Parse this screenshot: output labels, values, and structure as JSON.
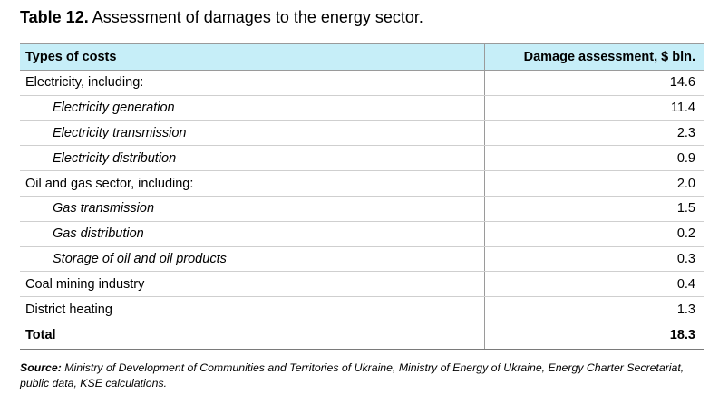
{
  "caption": {
    "label": "Table 12.",
    "text": "Assessment of damages to the energy sector."
  },
  "table": {
    "headers": {
      "type": "Types of costs",
      "value": "Damage assessment, $ bln."
    },
    "rows": [
      {
        "label": "Electricity, including:",
        "value": "14.6",
        "sub": false
      },
      {
        "label": "Electricity generation",
        "value": "11.4",
        "sub": true
      },
      {
        "label": "Electricity transmission",
        "value": "2.3",
        "sub": true
      },
      {
        "label": "Electricity distribution",
        "value": "0.9",
        "sub": true
      },
      {
        "label": "Oil and gas sector, including:",
        "value": "2.0",
        "sub": false
      },
      {
        "label": "Gas transmission",
        "value": "1.5",
        "sub": true
      },
      {
        "label": "Gas distribution",
        "value": "0.2",
        "sub": true
      },
      {
        "label": "Storage of oil and oil products",
        "value": "0.3",
        "sub": true
      },
      {
        "label": "Coal mining industry",
        "value": "0.4",
        "sub": false
      },
      {
        "label": "District heating",
        "value": "1.3",
        "sub": false
      }
    ],
    "total": {
      "label": "Total",
      "value": "18.3"
    }
  },
  "source": {
    "label": "Source:",
    "text": "Ministry of Development of Communities and Territories of Ukraine, Ministry of Energy of Ukraine, Energy Charter Secretariat, public data, KSE calculations."
  },
  "colors": {
    "header_background": "#c6eef8"
  }
}
